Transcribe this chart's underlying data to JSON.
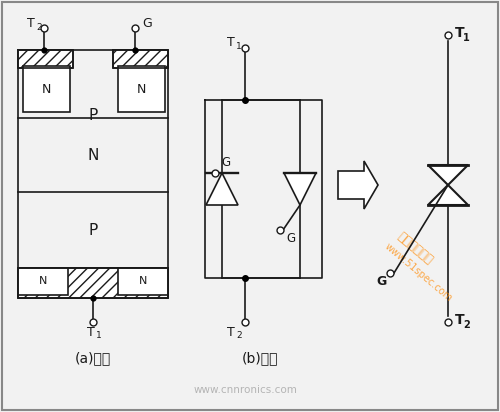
{
  "bg_color": "#f2f2f2",
  "line_color": "#1a1a1a",
  "fig_width": 5.0,
  "fig_height": 4.12,
  "dpi": 100,
  "watermark1": "环球电气之家",
  "watermark2": "www.51spec.com",
  "watermark3": "www.cnnronics.com",
  "caption_a": "(a)结构",
  "caption_b": "(b)电路"
}
